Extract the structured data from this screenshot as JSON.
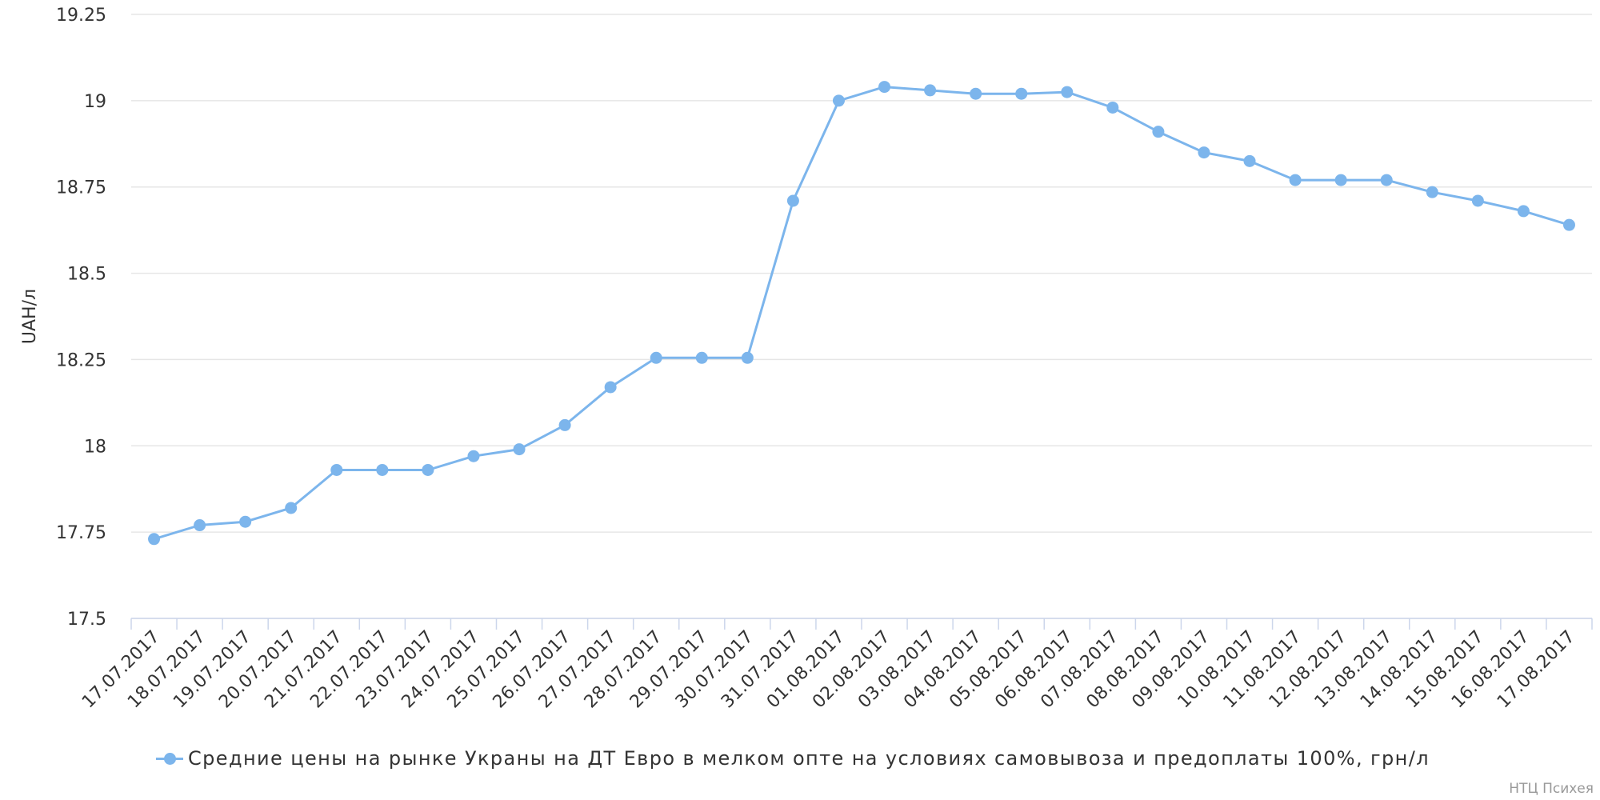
{
  "chart_data": {
    "type": "line",
    "title": "",
    "xlabel": "",
    "ylabel": "UAH/л",
    "ylim": [
      17.5,
      19.25
    ],
    "yticks": [
      17.5,
      17.75,
      18,
      18.25,
      18.5,
      18.75,
      19,
      19.25
    ],
    "ytick_labels": [
      "17.5",
      "17.75",
      "18",
      "18.25",
      "18.5",
      "18.75",
      "19",
      "19.25"
    ],
    "grid": true,
    "legend_position": "bottom",
    "categories": [
      "17.07.2017",
      "18.07.2017",
      "19.07.2017",
      "20.07.2017",
      "21.07.2017",
      "22.07.2017",
      "23.07.2017",
      "24.07.2017",
      "25.07.2017",
      "26.07.2017",
      "27.07.2017",
      "28.07.2017",
      "29.07.2017",
      "30.07.2017",
      "31.07.2017",
      "01.08.2017",
      "02.08.2017",
      "03.08.2017",
      "04.08.2017",
      "05.08.2017",
      "06.08.2017",
      "07.08.2017",
      "08.08.2017",
      "09.08.2017",
      "10.08.2017",
      "11.08.2017",
      "12.08.2017",
      "13.08.2017",
      "14.08.2017",
      "15.08.2017",
      "16.08.2017",
      "17.08.2017"
    ],
    "series": [
      {
        "name": "Средние цены на рынке Украны на ДТ Евро в мелком опте на условиях самовывоза и предоплаты 100%, грн/л",
        "color": "#7cb5ec",
        "values": [
          17.73,
          17.77,
          17.78,
          17.82,
          17.93,
          17.93,
          17.93,
          17.97,
          17.99,
          18.06,
          18.17,
          18.255,
          18.255,
          18.255,
          18.71,
          19.0,
          19.04,
          19.03,
          19.02,
          19.02,
          19.025,
          18.98,
          18.91,
          18.85,
          18.825,
          18.77,
          18.77,
          18.77,
          18.735,
          18.71,
          18.68,
          18.64
        ]
      }
    ]
  },
  "credits": "НТЦ Психея"
}
